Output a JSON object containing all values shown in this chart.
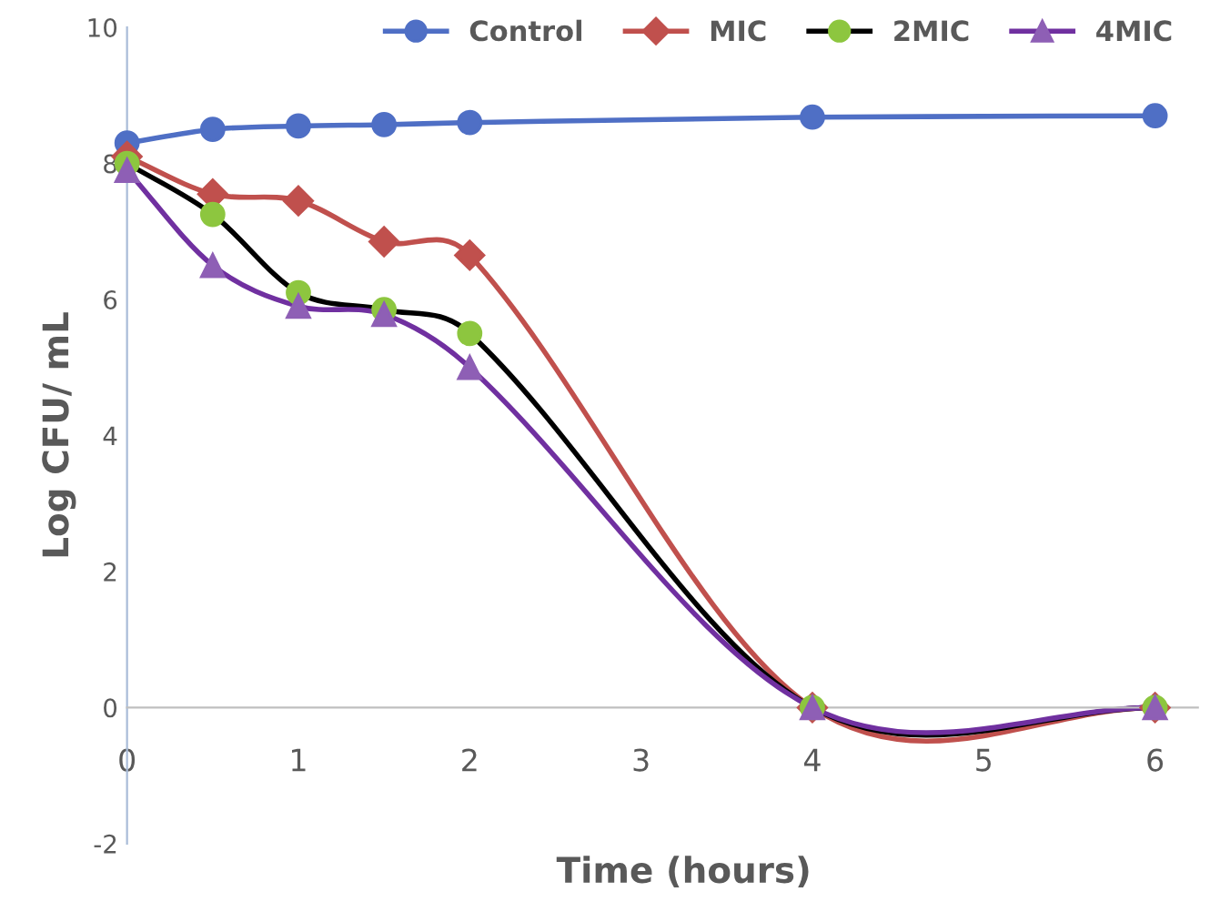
{
  "chart_data": {
    "type": "line",
    "xlabel": "Time (hours)",
    "ylabel": "Log CFU/ mL",
    "x": [
      0,
      0.5,
      1,
      1.5,
      2,
      4,
      6
    ],
    "xlim": [
      0,
      6.25
    ],
    "xticks": [
      0,
      1,
      2,
      3,
      4,
      5,
      6
    ],
    "ylim": [
      -2,
      10
    ],
    "yticks": [
      -2,
      0,
      2,
      4,
      6,
      8,
      10
    ],
    "grid": false,
    "legend": "top right",
    "series": [
      {
        "name": "Control",
        "color": "#4f6fc5",
        "marker": "circle",
        "values": [
          8.3,
          8.5,
          8.55,
          8.57,
          8.6,
          8.68,
          8.7
        ]
      },
      {
        "name": "MIC",
        "color": "#c0504d",
        "marker": "diamond",
        "values": [
          8.1,
          7.55,
          7.45,
          6.85,
          6.65,
          0,
          0
        ]
      },
      {
        "name": "2MIC",
        "color": "#000000",
        "colors": [
          "#8dc63f",
          "#8dc63f",
          "#8dc63f",
          "#8dc63f",
          "#8dc63f",
          "#8dc63f",
          "#8dc63f"
        ],
        "marker": "circle",
        "values": [
          8.0,
          7.25,
          6.1,
          5.85,
          5.5,
          0,
          0
        ]
      },
      {
        "name": "4MIC",
        "color": "#7030a0",
        "colors": [
          "#8e5fb5",
          "#8e5fb5",
          "#8e5fb5",
          "#8e5fb5",
          "#8e5fb5",
          "#8e5fb5",
          "#8e5fb5"
        ],
        "marker": "triangle",
        "values": [
          7.9,
          6.5,
          5.9,
          5.78,
          5.0,
          0,
          0
        ]
      }
    ]
  }
}
